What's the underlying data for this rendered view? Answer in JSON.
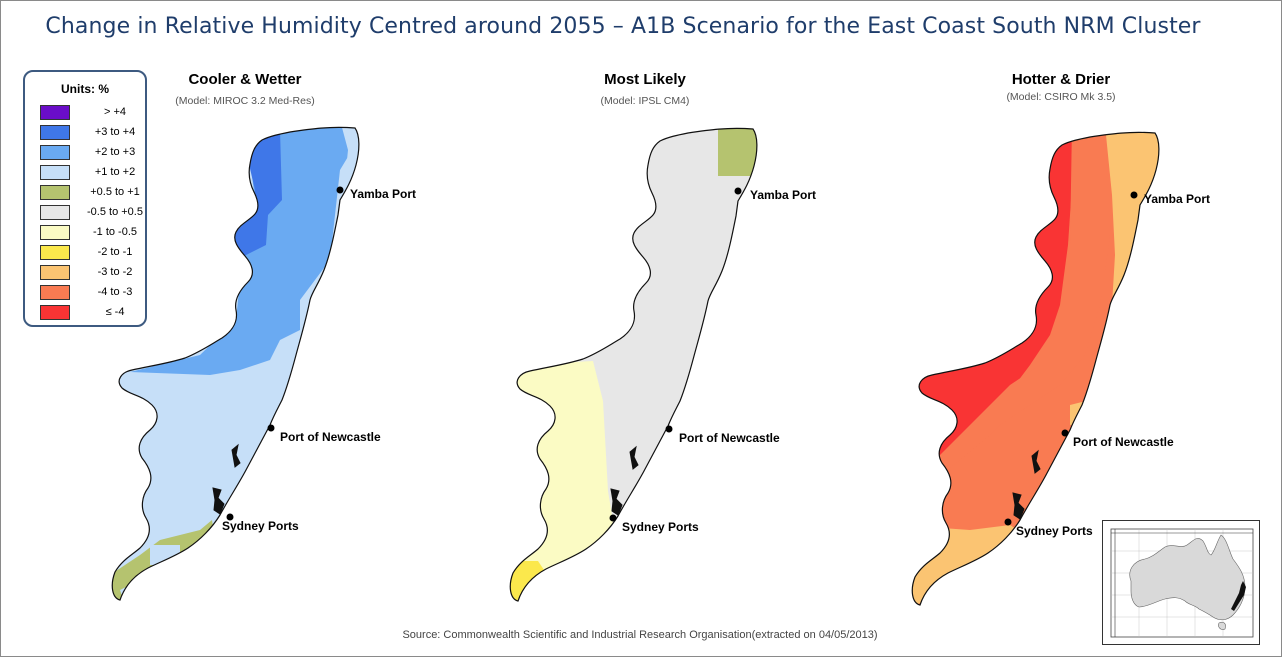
{
  "title": "Change in Relative Humidity Centred around 2055 – A1B Scenario for the East Coast South NRM Cluster",
  "legend": {
    "title": "Units: %",
    "items": [
      {
        "label": "> +4",
        "color": "#6a0dc8"
      },
      {
        "label": "+3 to +4",
        "color": "#3f77e8"
      },
      {
        "label": "+2 to +3",
        "color": "#6aaaf2"
      },
      {
        "label": "+1 to +2",
        "color": "#c6dff8"
      },
      {
        "label": "+0.5 to +1",
        "color": "#b5c36f"
      },
      {
        "label": "-0.5 to +0.5",
        "color": "#e7e7e7"
      },
      {
        "label": "-1 to -0.5",
        "color": "#fbfbc4"
      },
      {
        "label": "-2 to -1",
        "color": "#fbe84c"
      },
      {
        "label": "-3 to -2",
        "color": "#fbc472"
      },
      {
        "label": "-4 to -3",
        "color": "#f97b52"
      },
      {
        "label": "≤ -4",
        "color": "#f93434"
      }
    ]
  },
  "panels": [
    {
      "title": "Cooler & Wetter",
      "model": "(Model: MIROC 3.2 Med-Res)"
    },
    {
      "title": "Most Likely",
      "model": "(Model: IPSL CM4)"
    },
    {
      "title": "Hotter & Drier",
      "model": "(Model: CSIRO Mk 3.5)"
    }
  ],
  "ports": {
    "yamba": "Yamba Port",
    "newcastle": "Port of Newcastle",
    "sydney": "Sydney Ports"
  },
  "source": "Source: Commonwealth Scientific and Industrial Research Organisation(extracted on 04/05/2013)",
  "colors": {
    "title": "#1f3d6b",
    "legend_border": "#3d5a80",
    "coastline": "#111111",
    "inset_land": "#d9d9d9",
    "inset_highlight": "#111111"
  }
}
